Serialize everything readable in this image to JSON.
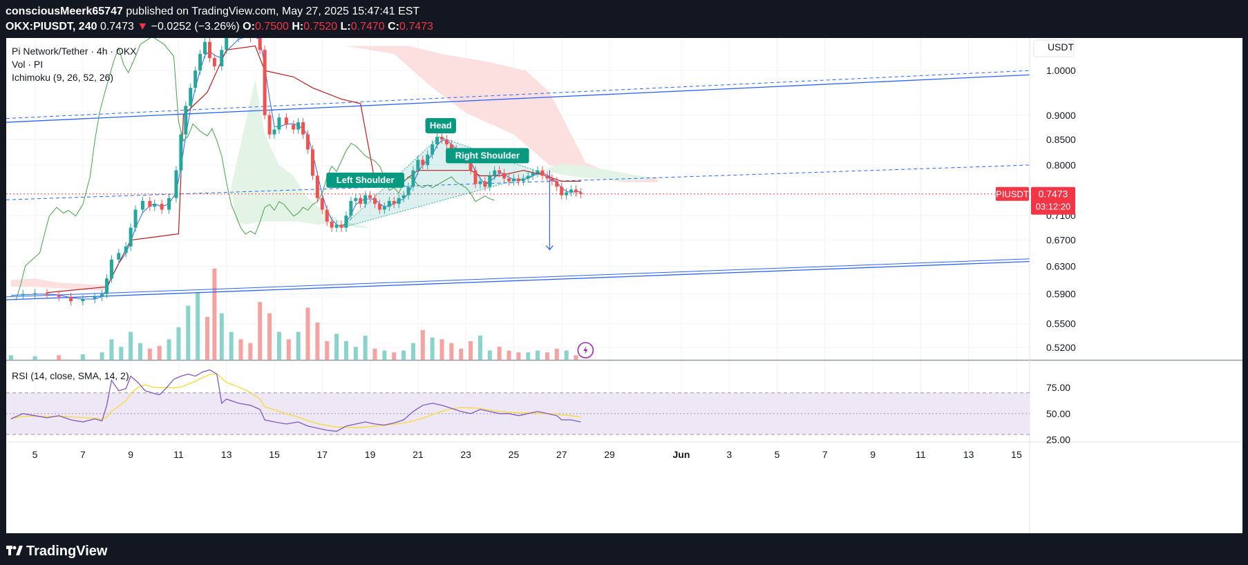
{
  "header": {
    "author": "consciousMeerk65747",
    "published": " published on TradingView.com, May 27, 2025 15:47:41 EST",
    "symbol_line": "OKX:PIUSDT, 240",
    "last": "0.7473",
    "change_arrow": "▼",
    "change": "−0.0252 (−3.26%)",
    "o_label": "O:",
    "o": "0.7500",
    "h_label": "H:",
    "h": "0.7520",
    "l_label": "L:",
    "l": "0.7470",
    "c_label": "C:",
    "c": "0.7473"
  },
  "legend": {
    "title": "Pi Network/Tether · 4h · OKX",
    "vol": "Vol · PI",
    "ichimoku": "Ichimoku (9, 26, 52, 26)"
  },
  "rsi_legend": "RSI (14, close, SMA, 14, 2)",
  "footer": {
    "brand": "TradingView"
  },
  "colors": {
    "up": "#26a69a",
    "down": "#ef5350",
    "vol_up": "#8ad3ca",
    "vol_down": "#f5a3a0",
    "trend": "#2962ff",
    "conversion": "#2962ff",
    "base": "#b71c1c",
    "lagging": "#43a047",
    "cloud_bear": "#fbe0df",
    "cloud_bull": "#e3f3e6",
    "rsi": "#7e57c2",
    "rsi_ma": "#fdd835",
    "rsi_band": "#ede7f6",
    "label_bg": "#089981",
    "price_tag": "#f23645"
  },
  "chart_data": {
    "type": "candlestick",
    "title": "Pi Network/Tether · 4h · OKX",
    "currency": "USDT",
    "y_scale": "log",
    "ylim": [
      0.505,
      1.08
    ],
    "price_ticks": [
      "1.0000",
      "0.9000",
      "0.8500",
      "0.8000",
      "0.7100",
      "0.6700",
      "0.6300",
      "0.5900",
      "0.5500",
      "0.5200"
    ],
    "x_ticks": [
      "5",
      "7",
      "9",
      "11",
      "13",
      "15",
      "17",
      "19",
      "21",
      "23",
      "25",
      "27",
      "29",
      "Jun",
      "3",
      "5",
      "7",
      "9",
      "11",
      "13",
      "15"
    ],
    "x_range_days": [
      3.8,
      46.55
    ],
    "last_price": "0.7473",
    "countdown": "03:12:20",
    "price_tag_symbol": "PIUSDT",
    "close_series_note": "Approximate 4h closes read from the chart, May 4 – May 27 2025",
    "closes": [
      [
        4.0,
        0.588
      ],
      [
        4.5,
        0.59
      ],
      [
        5.0,
        0.591
      ],
      [
        5.5,
        0.589
      ],
      [
        6.0,
        0.586
      ],
      [
        6.5,
        0.58
      ],
      [
        7.0,
        0.583
      ],
      [
        7.5,
        0.586
      ],
      [
        7.8,
        0.59
      ],
      [
        8.0,
        0.612
      ],
      [
        8.2,
        0.64
      ],
      [
        8.5,
        0.65
      ],
      [
        8.8,
        0.66
      ],
      [
        9.0,
        0.69
      ],
      [
        9.2,
        0.72
      ],
      [
        9.5,
        0.735
      ],
      [
        9.8,
        0.725
      ],
      [
        10.0,
        0.73
      ],
      [
        10.3,
        0.72
      ],
      [
        10.6,
        0.74
      ],
      [
        10.9,
        0.79
      ],
      [
        11.1,
        0.86
      ],
      [
        11.3,
        0.92
      ],
      [
        11.5,
        0.96
      ],
      [
        11.7,
        1.0
      ],
      [
        11.9,
        1.04
      ],
      [
        12.1,
        1.07
      ],
      [
        12.3,
        1.03
      ],
      [
        12.5,
        1.01
      ],
      [
        12.8,
        1.05
      ],
      [
        13.0,
        1.08
      ],
      [
        13.5,
        1.1
      ],
      [
        14.0,
        1.08
      ],
      [
        14.4,
        1.05
      ],
      [
        14.6,
        0.9
      ],
      [
        14.8,
        0.86
      ],
      [
        15.0,
        0.87
      ],
      [
        15.2,
        0.895
      ],
      [
        15.5,
        0.88
      ],
      [
        15.8,
        0.87
      ],
      [
        16.0,
        0.885
      ],
      [
        16.2,
        0.86
      ],
      [
        16.4,
        0.83
      ],
      [
        16.6,
        0.78
      ],
      [
        16.8,
        0.74
      ],
      [
        17.0,
        0.72
      ],
      [
        17.2,
        0.7
      ],
      [
        17.4,
        0.69
      ],
      [
        17.6,
        0.695
      ],
      [
        17.8,
        0.69
      ],
      [
        18.0,
        0.71
      ],
      [
        18.2,
        0.735
      ],
      [
        18.4,
        0.74
      ],
      [
        18.6,
        0.73
      ],
      [
        18.8,
        0.745
      ],
      [
        19.0,
        0.74
      ],
      [
        19.2,
        0.73
      ],
      [
        19.4,
        0.72
      ],
      [
        19.6,
        0.725
      ],
      [
        19.8,
        0.735
      ],
      [
        20.0,
        0.73
      ],
      [
        20.2,
        0.74
      ],
      [
        20.4,
        0.745
      ],
      [
        20.6,
        0.76
      ],
      [
        20.8,
        0.79
      ],
      [
        21.0,
        0.81
      ],
      [
        21.2,
        0.8
      ],
      [
        21.4,
        0.82
      ],
      [
        21.6,
        0.84
      ],
      [
        21.8,
        0.855
      ],
      [
        22.0,
        0.85
      ],
      [
        22.2,
        0.84
      ],
      [
        22.4,
        0.83
      ],
      [
        22.6,
        0.825
      ],
      [
        22.8,
        0.82
      ],
      [
        23.0,
        0.81
      ],
      [
        23.2,
        0.79
      ],
      [
        23.4,
        0.765
      ],
      [
        23.6,
        0.77
      ],
      [
        23.8,
        0.76
      ],
      [
        24.0,
        0.78
      ],
      [
        24.2,
        0.79
      ],
      [
        24.4,
        0.785
      ],
      [
        24.6,
        0.775
      ],
      [
        24.8,
        0.77
      ],
      [
        25.0,
        0.775
      ],
      [
        25.2,
        0.77
      ],
      [
        25.4,
        0.775
      ],
      [
        25.6,
        0.78
      ],
      [
        25.8,
        0.785
      ],
      [
        26.0,
        0.79
      ],
      [
        26.2,
        0.78
      ],
      [
        26.4,
        0.775
      ],
      [
        26.6,
        0.77
      ],
      [
        26.8,
        0.76
      ],
      [
        27.0,
        0.745
      ],
      [
        27.2,
        0.75
      ],
      [
        27.4,
        0.755
      ],
      [
        27.6,
        0.75
      ],
      [
        27.8,
        0.7473
      ]
    ],
    "volume": [
      [
        4.0,
        0.05
      ],
      [
        5.0,
        0.04
      ],
      [
        6.0,
        0.05
      ],
      [
        7.0,
        0.06
      ],
      [
        7.8,
        0.08
      ],
      [
        8.2,
        0.22
      ],
      [
        8.6,
        0.14
      ],
      [
        9.0,
        0.3
      ],
      [
        9.4,
        0.18
      ],
      [
        9.8,
        0.12
      ],
      [
        10.2,
        0.15
      ],
      [
        10.6,
        0.22
      ],
      [
        11.0,
        0.35
      ],
      [
        11.4,
        0.58
      ],
      [
        11.8,
        0.72
      ],
      [
        12.2,
        0.46
      ],
      [
        12.5,
        0.98
      ],
      [
        12.8,
        0.5
      ],
      [
        13.2,
        0.3
      ],
      [
        13.6,
        0.22
      ],
      [
        14.0,
        0.18
      ],
      [
        14.4,
        0.62
      ],
      [
        14.8,
        0.5
      ],
      [
        15.2,
        0.3
      ],
      [
        15.6,
        0.22
      ],
      [
        16.0,
        0.3
      ],
      [
        16.4,
        0.56
      ],
      [
        16.8,
        0.4
      ],
      [
        17.2,
        0.2
      ],
      [
        17.6,
        0.28
      ],
      [
        18.0,
        0.2
      ],
      [
        18.4,
        0.14
      ],
      [
        18.8,
        0.26
      ],
      [
        19.2,
        0.12
      ],
      [
        19.6,
        0.1
      ],
      [
        20.0,
        0.08
      ],
      [
        20.4,
        0.1
      ],
      [
        20.8,
        0.18
      ],
      [
        21.2,
        0.32
      ],
      [
        21.6,
        0.24
      ],
      [
        22.0,
        0.22
      ],
      [
        22.4,
        0.18
      ],
      [
        22.8,
        0.12
      ],
      [
        23.2,
        0.2
      ],
      [
        23.6,
        0.26
      ],
      [
        24.0,
        0.1
      ],
      [
        24.4,
        0.14
      ],
      [
        24.8,
        0.1
      ],
      [
        25.2,
        0.08
      ],
      [
        25.6,
        0.08
      ],
      [
        26.0,
        0.1
      ],
      [
        26.4,
        0.08
      ],
      [
        26.8,
        0.12
      ],
      [
        27.2,
        0.1
      ],
      [
        27.6,
        0.05
      ]
    ],
    "annotations": [
      {
        "text": "Head",
        "day": 21.95,
        "price": 0.878
      },
      {
        "text": "Right Shoulder",
        "day": 23.9,
        "price": 0.818
      },
      {
        "text": "Left Shoulder",
        "day": 18.8,
        "price": 0.772
      }
    ],
    "rsi": {
      "legend": "RSI (14, close, SMA, 14, 2)",
      "levels": [
        70,
        50,
        30
      ],
      "ticks": [
        "75.00",
        "50.00",
        "25.00"
      ],
      "ylim": [
        24,
        99
      ],
      "values": [
        [
          4.0,
          45
        ],
        [
          4.5,
          50
        ],
        [
          5.0,
          48
        ],
        [
          5.5,
          46
        ],
        [
          6.0,
          48
        ],
        [
          6.5,
          44
        ],
        [
          7.0,
          42
        ],
        [
          7.5,
          45
        ],
        [
          7.8,
          43
        ],
        [
          8.0,
          58
        ],
        [
          8.2,
          82
        ],
        [
          8.5,
          72
        ],
        [
          8.8,
          74
        ],
        [
          9.0,
          86
        ],
        [
          9.3,
          80
        ],
        [
          9.6,
          72
        ],
        [
          9.9,
          70
        ],
        [
          10.2,
          68
        ],
        [
          10.5,
          75
        ],
        [
          10.8,
          83
        ],
        [
          11.1,
          86
        ],
        [
          11.4,
          88
        ],
        [
          11.7,
          86
        ],
        [
          12.0,
          90
        ],
        [
          12.3,
          92
        ],
        [
          12.6,
          88
        ],
        [
          12.8,
          60
        ],
        [
          13.0,
          64
        ],
        [
          13.5,
          60
        ],
        [
          14.0,
          58
        ],
        [
          14.4,
          54
        ],
        [
          14.6,
          44
        ],
        [
          15.0,
          42
        ],
        [
          15.5,
          40
        ],
        [
          16.0,
          42
        ],
        [
          16.4,
          38
        ],
        [
          16.8,
          36
        ],
        [
          17.2,
          34
        ],
        [
          17.6,
          33
        ],
        [
          18.0,
          38
        ],
        [
          18.4,
          40
        ],
        [
          18.8,
          42
        ],
        [
          19.2,
          40
        ],
        [
          19.6,
          39
        ],
        [
          20.0,
          41
        ],
        [
          20.4,
          44
        ],
        [
          20.8,
          52
        ],
        [
          21.2,
          58
        ],
        [
          21.6,
          60
        ],
        [
          22.0,
          58
        ],
        [
          22.4,
          55
        ],
        [
          22.8,
          52
        ],
        [
          23.2,
          50
        ],
        [
          23.6,
          54
        ],
        [
          24.0,
          52
        ],
        [
          24.4,
          50
        ],
        [
          24.8,
          50
        ],
        [
          25.2,
          48
        ],
        [
          25.6,
          50
        ],
        [
          26.0,
          52
        ],
        [
          26.4,
          50
        ],
        [
          26.8,
          48
        ],
        [
          27.0,
          44
        ],
        [
          27.4,
          44
        ],
        [
          27.8,
          42
        ]
      ]
    }
  }
}
